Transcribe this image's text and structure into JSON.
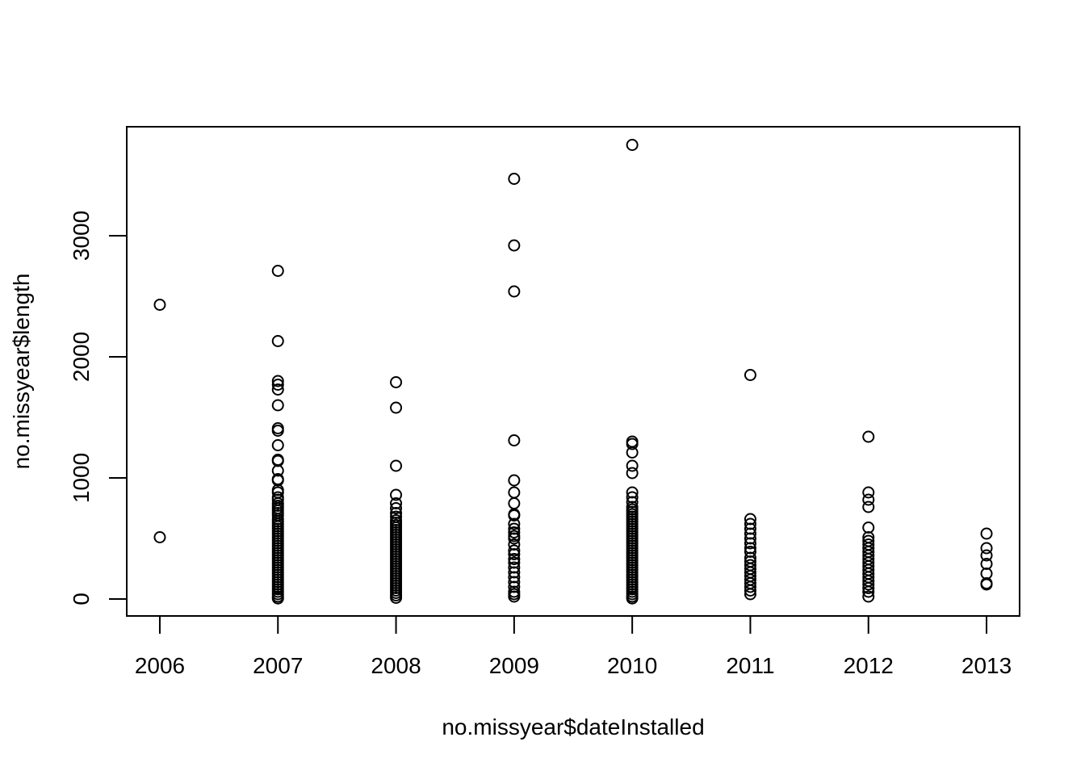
{
  "chart_data": {
    "type": "scatter",
    "title": "",
    "xlabel": "no.missyear$dateInstalled",
    "ylabel": "no.missyear$length",
    "xlim": [
      2005.72,
      2013.28
    ],
    "ylim": [
      -140,
      3900
    ],
    "x_ticks": [
      2006,
      2007,
      2008,
      2009,
      2010,
      2011,
      2012,
      2013
    ],
    "y_ticks": [
      0,
      1000,
      2000,
      3000
    ],
    "x_tick_labels": [
      "2006",
      "2007",
      "2008",
      "2009",
      "2010",
      "2011",
      "2012",
      "2013"
    ],
    "y_tick_labels": [
      "0",
      "1000",
      "2000",
      "3000"
    ],
    "grid": false,
    "marker": "open-circle",
    "groups": [
      {
        "x": 2006,
        "y": [
          2430,
          510
        ]
      },
      {
        "x": 2007,
        "y": [
          2710,
          2130,
          1800,
          1770,
          1730,
          1600,
          1410,
          1390,
          1270,
          1150,
          1140,
          1060,
          990,
          980,
          900,
          880,
          840,
          820,
          790,
          770,
          750,
          730,
          710,
          690,
          660,
          640,
          620,
          600,
          580,
          560,
          540,
          520,
          500,
          480,
          460,
          440,
          420,
          400,
          380,
          360,
          340,
          320,
          300,
          280,
          260,
          240,
          220,
          200,
          180,
          160,
          140,
          120,
          100,
          80,
          60,
          40,
          20,
          5
        ]
      },
      {
        "x": 2008,
        "y": [
          1790,
          1580,
          1100,
          860,
          790,
          750,
          710,
          680,
          650,
          630,
          610,
          590,
          570,
          550,
          530,
          510,
          490,
          470,
          450,
          430,
          410,
          390,
          370,
          350,
          330,
          310,
          290,
          270,
          250,
          230,
          210,
          190,
          170,
          150,
          130,
          110,
          90,
          70,
          50,
          30,
          10
        ]
      },
      {
        "x": 2009,
        "y": [
          3470,
          2920,
          2540,
          1310,
          980,
          880,
          790,
          700,
          690,
          620,
          580,
          550,
          520,
          500,
          450,
          400,
          370,
          330,
          300,
          260,
          220,
          180,
          140,
          100,
          60,
          40,
          20
        ]
      },
      {
        "x": 2010,
        "y": [
          3750,
          1300,
          1280,
          1210,
          1100,
          1040,
          880,
          840,
          800,
          760,
          740,
          720,
          700,
          680,
          660,
          640,
          620,
          600,
          580,
          560,
          540,
          520,
          500,
          480,
          460,
          440,
          420,
          400,
          380,
          360,
          340,
          320,
          300,
          280,
          260,
          240,
          220,
          200,
          180,
          160,
          140,
          120,
          100,
          80,
          60,
          40,
          20,
          5
        ]
      },
      {
        "x": 2011,
        "y": [
          1850,
          660,
          620,
          580,
          540,
          500,
          460,
          420,
          390,
          340,
          310,
          280,
          250,
          220,
          190,
          160,
          130,
          100,
          70,
          40
        ]
      },
      {
        "x": 2012,
        "y": [
          1340,
          880,
          820,
          760,
          590,
          510,
          480,
          450,
          420,
          390,
          360,
          330,
          300,
          270,
          240,
          210,
          180,
          150,
          120,
          90,
          60,
          20
        ]
      },
      {
        "x": 2013,
        "y": [
          540,
          420,
          360,
          290,
          210,
          130,
          120
        ]
      }
    ]
  }
}
